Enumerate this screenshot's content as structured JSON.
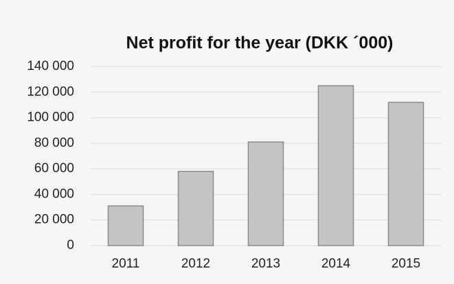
{
  "chart_data": {
    "type": "bar",
    "title": "Net profit for the year (DKK ´000)",
    "categories": [
      "2011",
      "2012",
      "2013",
      "2014",
      "2015"
    ],
    "values": [
      31000,
      58000,
      81000,
      125000,
      112000
    ],
    "color": "#c4c4c4",
    "ylim": [
      0,
      140000
    ],
    "yticks": [
      0,
      {
        "value": 20000,
        "label": "20 000"
      },
      {
        "value": 40000,
        "label": "40 000"
      },
      {
        "value": 60000,
        "label": "60 000"
      },
      {
        "value": 80000,
        "label": "80 000"
      },
      {
        "value": 100000,
        "label": "100 000"
      },
      {
        "value": 120000,
        "label": "120 000"
      },
      {
        "value": 140000,
        "label": "140 000"
      }
    ],
    "grid": true
  }
}
